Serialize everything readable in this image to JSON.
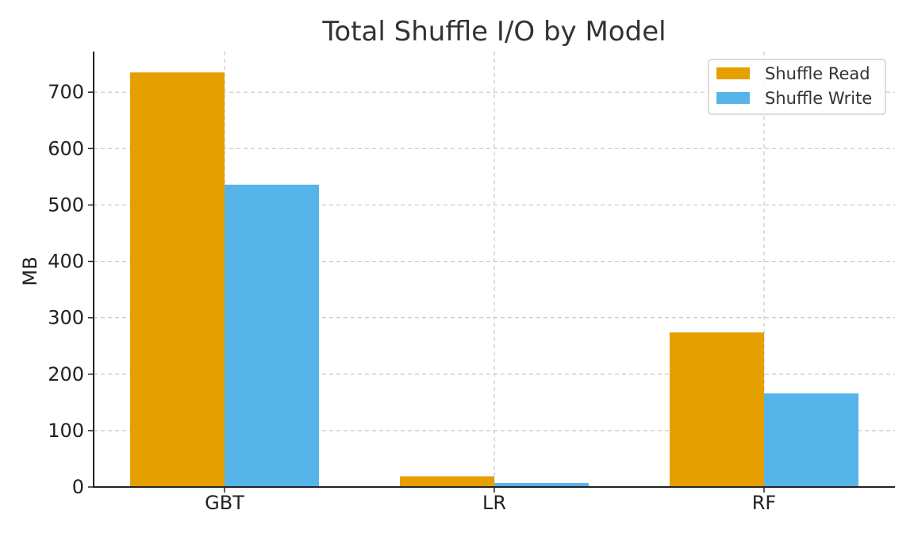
{
  "chart_data": {
    "type": "bar",
    "title": "Total Shuffle I/O by Model",
    "xlabel": "",
    "ylabel": "MB",
    "categories": [
      "GBT",
      "LR",
      "RF"
    ],
    "series": [
      {
        "name": "Shuffle Read",
        "color": "#E69F00",
        "values": [
          735,
          19,
          274
        ]
      },
      {
        "name": "Shuffle Write",
        "color": "#56B4E9",
        "values": [
          536,
          7,
          166
        ]
      }
    ],
    "ylim": [
      0,
      772
    ],
    "yticks": [
      0,
      100,
      200,
      300,
      400,
      500,
      600,
      700
    ],
    "grid": true,
    "legend_position": "top-right"
  }
}
